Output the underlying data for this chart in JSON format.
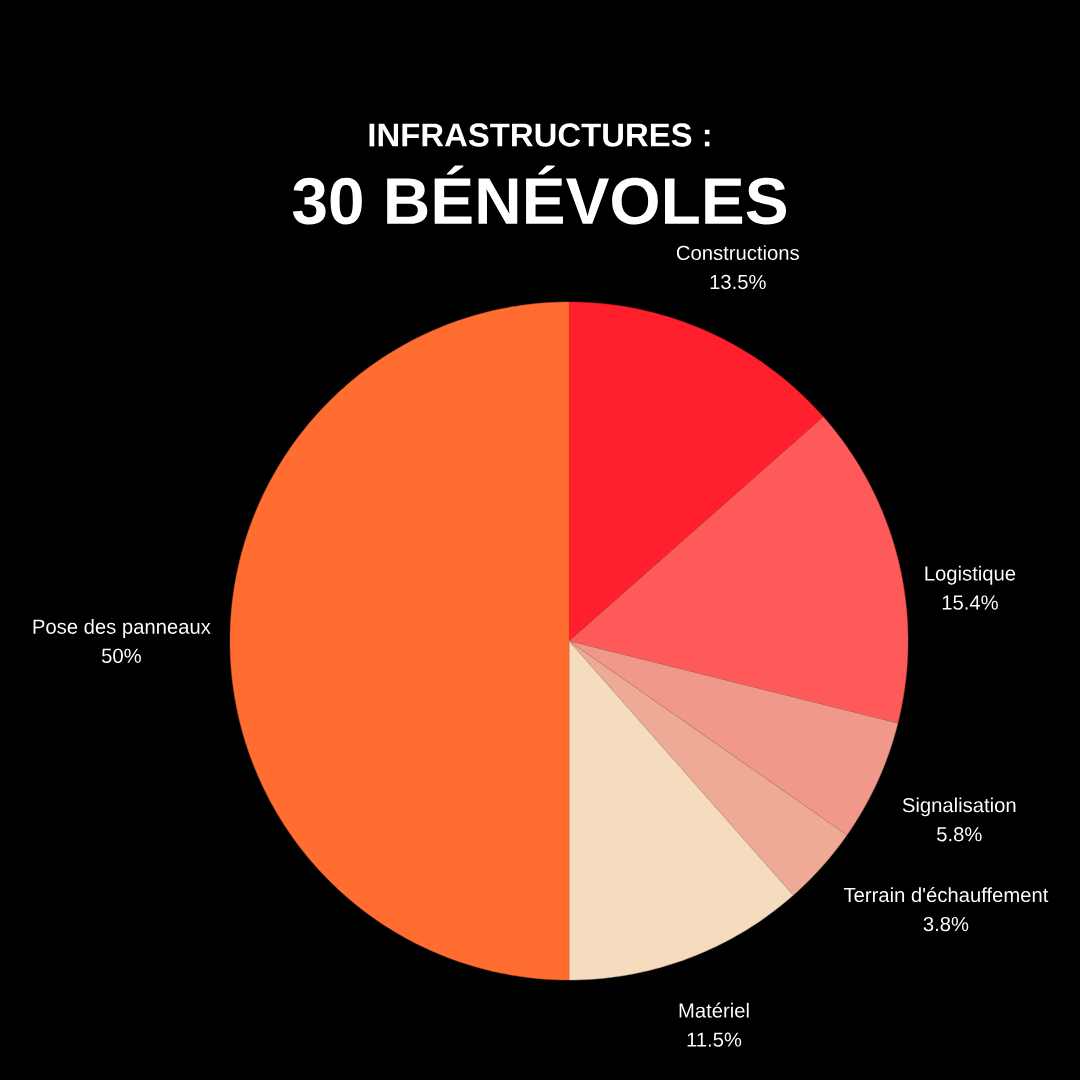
{
  "chart_data": {
    "type": "pie",
    "title": "INFRASTRUCTURES :",
    "subtitle": "30 BÉNÉVOLES",
    "categories": [
      "Constructions",
      "Logistique",
      "Signalisation",
      "Terrain d'échauffement",
      "Matériel",
      "Pose des panneaux"
    ],
    "values": [
      13.5,
      15.4,
      5.8,
      3.8,
      11.5,
      50
    ],
    "value_labels": [
      "13.5%",
      "15.4%",
      "5.8%",
      "3.8%",
      "11.5%",
      "50%"
    ],
    "colors": [
      "#ff1f2d",
      "#ff5a5a",
      "#f0998a",
      "#eeaa94",
      "#f5dcbe",
      "#ff6e30"
    ]
  }
}
